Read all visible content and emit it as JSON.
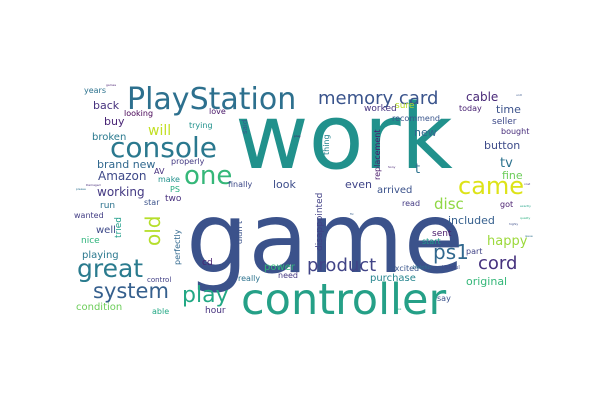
{
  "words": [
    {
      "text": "work",
      "color": "#21918c"
    },
    {
      "text": "game",
      "color": "#3b528b"
    },
    {
      "text": "controller",
      "color": "#25a087"
    },
    {
      "text": "PlayStation",
      "color": "#2d708e"
    },
    {
      "text": "console",
      "color": "#2a788e"
    },
    {
      "text": "one",
      "color": "#35b779"
    },
    {
      "text": "great",
      "color": "#2a7b8e"
    },
    {
      "text": "came",
      "color": "#dde318"
    },
    {
      "text": "play",
      "color": "#22a884"
    },
    {
      "text": "system",
      "color": "#355f8d"
    },
    {
      "text": "memory card",
      "color": "#3a548c"
    },
    {
      "text": "product",
      "color": "#414487"
    },
    {
      "text": "old",
      "color": "#b5de2b"
    },
    {
      "text": "ps1",
      "color": "#31688e"
    },
    {
      "text": "cord",
      "color": "#46327e"
    },
    {
      "text": "will",
      "color": "#c2df23"
    },
    {
      "text": "disc",
      "color": "#8fd744"
    },
    {
      "text": "happy",
      "color": "#9cd93b"
    },
    {
      "text": "Amazon",
      "color": "#3e4a89"
    },
    {
      "text": "working",
      "color": "#443983"
    },
    {
      "text": "brand new",
      "color": "#31688e"
    },
    {
      "text": "tv",
      "color": "#2c728e"
    },
    {
      "text": "fine",
      "color": "#6ccd5a"
    },
    {
      "text": "cable",
      "color": "#482878"
    },
    {
      "text": "time",
      "color": "#3b528b"
    },
    {
      "text": "button",
      "color": "#3e4c8a"
    },
    {
      "text": "even",
      "color": "#404588"
    },
    {
      "text": "arrived",
      "color": "#3b528b"
    },
    {
      "text": "included",
      "color": "#355f8d"
    },
    {
      "text": "sent",
      "color": "#48186a"
    },
    {
      "text": "original",
      "color": "#35b779"
    },
    {
      "text": "look",
      "color": "#3d4d8a"
    },
    {
      "text": "power",
      "color": "#31b57b"
    },
    {
      "text": "purchase",
      "color": "#25858e"
    },
    {
      "text": "back",
      "color": "#46317e"
    },
    {
      "text": "buy",
      "color": "#482475"
    },
    {
      "text": "broken",
      "color": "#29798e"
    },
    {
      "text": "new",
      "color": "#31678e"
    },
    {
      "text": "t",
      "color": "#2c728e"
    },
    {
      "text": "worked",
      "color": "#463480"
    },
    {
      "text": "sure",
      "color": "#b8de29"
    },
    {
      "text": "seller",
      "color": "#3e4a89"
    },
    {
      "text": "bought",
      "color": "#472d7b"
    },
    {
      "text": "today",
      "color": "#482173"
    },
    {
      "text": "recommend",
      "color": "#39558c"
    },
    {
      "text": "replacement",
      "color": "#48186a"
    },
    {
      "text": "disappointed",
      "color": "#424186"
    },
    {
      "text": "excited",
      "color": "#39558c"
    },
    {
      "text": "read",
      "color": "#443b84"
    },
    {
      "text": "start",
      "color": "#1f998a"
    },
    {
      "text": "got",
      "color": "#481c6e"
    },
    {
      "text": "part",
      "color": "#414487"
    },
    {
      "text": "say",
      "color": "#3b528b"
    },
    {
      "text": "hour",
      "color": "#46327e"
    },
    {
      "text": "need",
      "color": "#453781"
    },
    {
      "text": "really",
      "color": "#2c728e"
    },
    {
      "text": "able",
      "color": "#22a884"
    },
    {
      "text": "condition",
      "color": "#6ccd5a"
    },
    {
      "text": "cd",
      "color": "#481f70"
    },
    {
      "text": "playing",
      "color": "#2a788e"
    },
    {
      "text": "nice",
      "color": "#2fb47c"
    },
    {
      "text": "wanted",
      "color": "#433e85"
    },
    {
      "text": "well",
      "color": "#3e4a89"
    },
    {
      "text": "run",
      "color": "#2c728e"
    },
    {
      "text": "tried",
      "color": "#1f9e89"
    },
    {
      "text": "star",
      "color": "#3b528b"
    },
    {
      "text": "two",
      "color": "#472f7d"
    },
    {
      "text": "make",
      "color": "#21918c"
    },
    {
      "text": "PS",
      "color": "#27ad81"
    },
    {
      "text": "perfectly",
      "color": "#31688e"
    },
    {
      "text": "didn t",
      "color": "#3b528b"
    },
    {
      "text": "finally",
      "color": "#3e4989"
    },
    {
      "text": "properly",
      "color": "#443a83"
    },
    {
      "text": "control",
      "color": "#424086"
    },
    {
      "text": "AV",
      "color": "#46307e"
    },
    {
      "text": "trying",
      "color": "#21918c"
    },
    {
      "text": "love",
      "color": "#481769"
    },
    {
      "text": "looking",
      "color": "#440154"
    },
    {
      "text": "years",
      "color": "#2c728e"
    },
    {
      "text": "said",
      "color": "#38588c"
    },
    {
      "text": "thing",
      "color": "#25848e"
    },
    {
      "text": "Helpful",
      "color": "#2d718e"
    },
    {
      "text": "Helpful",
      "color": "#3e4989"
    },
    {
      "text": "Damaged",
      "color": "#472c7a"
    },
    {
      "text": "please",
      "color": "#2d708e"
    },
    {
      "text": "exactly",
      "color": "#1fa287"
    },
    {
      "text": "Sony",
      "color": "#482475"
    },
    {
      "text": "highly",
      "color": "#3d4e8a"
    },
    {
      "text": "games",
      "color": "#481f70"
    },
    {
      "text": "quality",
      "color": "#29af7f"
    },
    {
      "text": "unit",
      "color": "#39568c"
    },
    {
      "text": "cost",
      "color": "#46337f"
    },
    {
      "text": "issue",
      "color": "#2e6f8e"
    },
    {
      "text": "plug",
      "color": "#481a6c"
    },
    {
      "text": "fix",
      "color": "#355e8d"
    },
    {
      "text": "box",
      "color": "#22a785"
    }
  ]
}
